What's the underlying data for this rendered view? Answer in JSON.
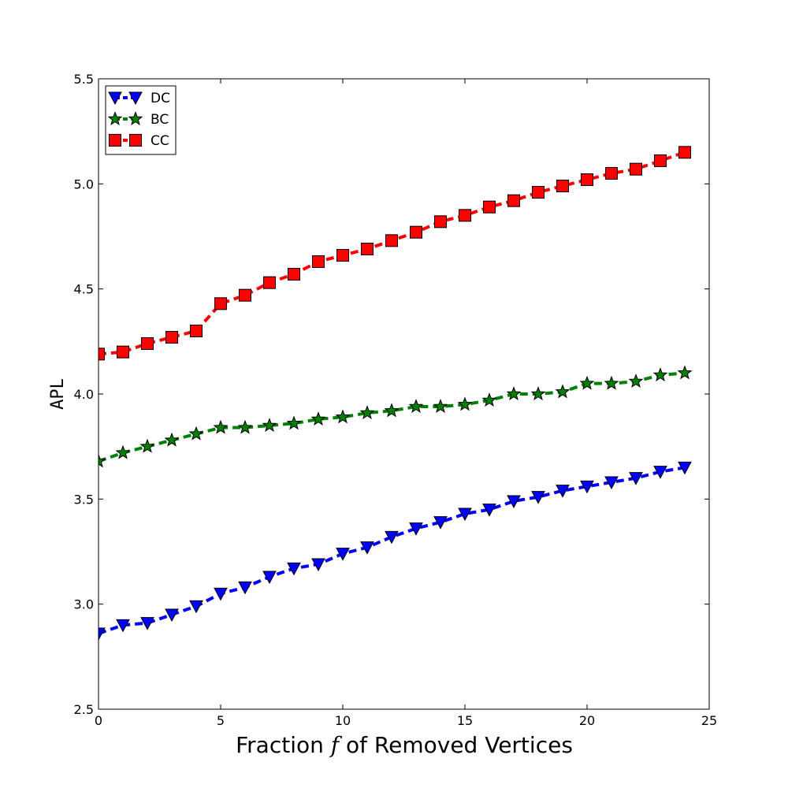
{
  "chart_data": {
    "type": "line",
    "xlabel": {
      "prefix": "Fraction ",
      "var": "f",
      "suffix": " of Removed Vertices"
    },
    "ylabel": "APL",
    "xlim": [
      0,
      25
    ],
    "ylim": [
      2.5,
      5.5
    ],
    "xticks": [
      0,
      5,
      10,
      15,
      20,
      25
    ],
    "yticks": [
      2.5,
      3.0,
      3.5,
      4.0,
      4.5,
      5.0,
      5.5
    ],
    "xtick_labels": [
      "0",
      "5",
      "10",
      "15",
      "20",
      "25"
    ],
    "ytick_labels": [
      "2.5",
      "3.0",
      "3.5",
      "4.0",
      "4.5",
      "5.0",
      "5.5"
    ],
    "grid": false,
    "legend_position": "top-left",
    "x": [
      0,
      1,
      2,
      3,
      4,
      5,
      6,
      7,
      8,
      9,
      10,
      11,
      12,
      13,
      14,
      15,
      16,
      17,
      18,
      19,
      20,
      21,
      22,
      23,
      24
    ],
    "series": [
      {
        "name": "DC",
        "color": "#0000ff",
        "marker": "triangle-down",
        "values": [
          2.86,
          2.9,
          2.91,
          2.95,
          2.99,
          3.05,
          3.08,
          3.13,
          3.17,
          3.19,
          3.24,
          3.27,
          3.32,
          3.36,
          3.39,
          3.43,
          3.45,
          3.49,
          3.51,
          3.54,
          3.56,
          3.58,
          3.6,
          3.63,
          3.65
        ]
      },
      {
        "name": "BC",
        "color": "#008000",
        "marker": "star",
        "values": [
          3.68,
          3.72,
          3.75,
          3.78,
          3.81,
          3.84,
          3.84,
          3.85,
          3.86,
          3.88,
          3.89,
          3.91,
          3.92,
          3.94,
          3.94,
          3.95,
          3.97,
          4.0,
          4.0,
          4.01,
          4.05,
          4.05,
          4.06,
          4.09,
          4.1
        ]
      },
      {
        "name": "CC",
        "color": "#ff0000",
        "marker": "square",
        "values": [
          4.19,
          4.2,
          4.24,
          4.27,
          4.3,
          4.43,
          4.47,
          4.53,
          4.57,
          4.63,
          4.66,
          4.69,
          4.73,
          4.77,
          4.82,
          4.85,
          4.89,
          4.92,
          4.96,
          4.99,
          5.02,
          5.05,
          5.07,
          5.11,
          5.15
        ]
      }
    ]
  }
}
